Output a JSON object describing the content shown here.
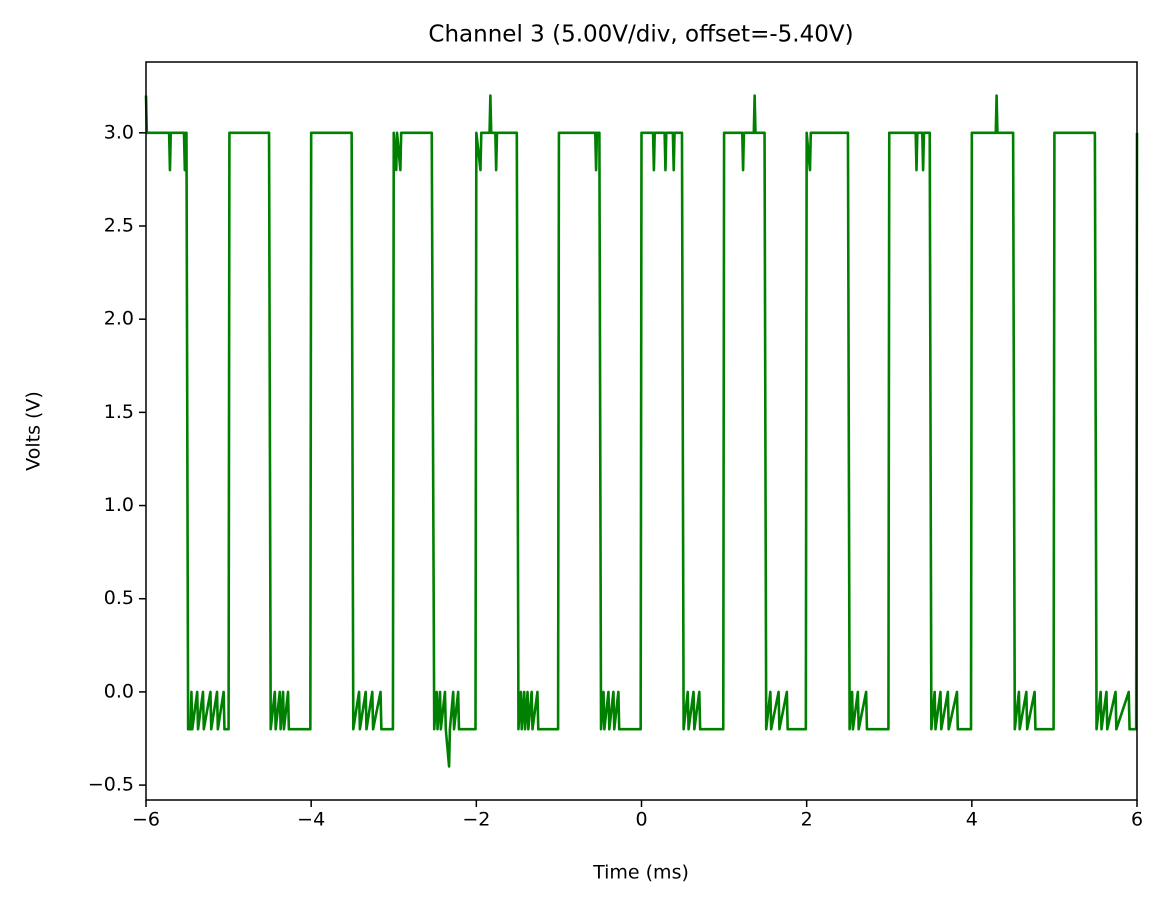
{
  "chart_data": {
    "type": "line",
    "title": "Channel 3 (5.00V/div, offset=-5.40V)",
    "xlabel": "Time (ms)",
    "ylabel": "Volts (V)",
    "xlim": [
      -6,
      6
    ],
    "ylim": [
      -0.58,
      3.38
    ],
    "xticks": [
      {
        "value": -6,
        "label": "−6"
      },
      {
        "value": -4,
        "label": "−4"
      },
      {
        "value": -2,
        "label": "−2"
      },
      0,
      2,
      4,
      6
    ],
    "yticks": [
      {
        "value": -0.5,
        "label": "−0.5"
      },
      {
        "value": 0,
        "label": "0.0"
      },
      {
        "value": 0.5,
        "label": "0.5"
      },
      {
        "value": 1,
        "label": "1.0"
      },
      {
        "value": 1.5,
        "label": "1.5"
      },
      {
        "value": 2,
        "label": "2.0"
      },
      {
        "value": 2.5,
        "label": "2.5"
      },
      {
        "value": 3,
        "label": "3.0"
      }
    ],
    "x": [
      -6,
      -5.99,
      -5.72,
      -5.71,
      -5.7,
      -5.54,
      -5.53,
      -5.52,
      -5.51,
      -5.49,
      -5.46,
      -5.45,
      -5.44,
      -5.38,
      -5.37,
      -5.31,
      -5.3,
      -5.22,
      -5.21,
      -5.14,
      -5.13,
      -5.06,
      -5.05,
      -5.0,
      -4.99,
      -4.51,
      -4.49,
      -4.44,
      -4.43,
      -4.38,
      -4.37,
      -4.34,
      -4.33,
      -4.28,
      -4.27,
      -4.01,
      -4.0,
      -3.51,
      -3.49,
      -3.42,
      -3.41,
      -3.34,
      -3.33,
      -3.26,
      -3.25,
      -3.16,
      -3.15,
      -3.01,
      -3.0,
      -2.97,
      -2.96,
      -2.92,
      -2.91,
      -2.54,
      -2.51,
      -2.48,
      -2.47,
      -2.44,
      -2.43,
      -2.38,
      -2.37,
      -2.33,
      -2.32,
      -2.28,
      -2.27,
      -2.22,
      -2.21,
      -2.01,
      -2.0,
      -1.95,
      -1.94,
      -1.84,
      -1.83,
      -1.82,
      -1.77,
      -1.76,
      -1.75,
      -1.51,
      -1.49,
      -1.46,
      -1.45,
      -1.42,
      -1.41,
      -1.38,
      -1.37,
      -1.33,
      -1.32,
      -1.26,
      -1.25,
      -1.01,
      -1.0,
      -0.56,
      -0.55,
      -0.54,
      -0.51,
      -0.49,
      -0.46,
      -0.45,
      -0.4,
      -0.39,
      -0.34,
      -0.33,
      -0.28,
      -0.27,
      -0.01,
      0.0,
      0.14,
      0.15,
      0.16,
      0.28,
      0.29,
      0.3,
      0.38,
      0.39,
      0.4,
      0.49,
      0.51,
      0.56,
      0.57,
      0.63,
      0.64,
      0.7,
      0.71,
      0.99,
      1.0,
      1.22,
      1.23,
      1.24,
      1.36,
      1.37,
      1.38,
      1.49,
      1.51,
      1.56,
      1.57,
      1.66,
      1.67,
      1.76,
      1.77,
      1.99,
      2.0,
      2.04,
      2.05,
      2.5,
      2.52,
      2.55,
      2.56,
      2.62,
      2.63,
      2.72,
      2.73,
      2.99,
      3.0,
      3.32,
      3.33,
      3.34,
      3.4,
      3.41,
      3.42,
      3.49,
      3.51,
      3.55,
      3.56,
      3.62,
      3.63,
      3.71,
      3.72,
      3.82,
      3.83,
      3.99,
      4.0,
      4.29,
      4.3,
      4.31,
      4.5,
      4.52,
      4.57,
      4.58,
      4.66,
      4.67,
      4.76,
      4.77,
      4.99,
      5.0,
      5.49,
      5.51,
      5.56,
      5.57,
      5.63,
      5.64,
      5.74,
      5.75,
      5.9,
      5.91,
      5.99,
      6.0
    ],
    "series": [
      {
        "color": "#008000",
        "values": [
          3.2,
          3.0,
          3.0,
          2.8,
          3.0,
          3.0,
          2.8,
          3.0,
          3.0,
          -0.2,
          -0.2,
          0,
          -0.2,
          0,
          -0.2,
          0,
          -0.2,
          0,
          -0.2,
          0,
          -0.2,
          0,
          -0.2,
          -0.2,
          3.0,
          3.0,
          -0.2,
          0,
          -0.2,
          0,
          -0.2,
          0,
          -0.2,
          0,
          -0.2,
          -0.2,
          3.0,
          3.0,
          -0.2,
          0,
          -0.2,
          0,
          -0.2,
          0,
          -0.2,
          0,
          -0.2,
          -0.2,
          3.0,
          2.8,
          3.0,
          2.8,
          3.0,
          3.0,
          -0.2,
          0,
          -0.2,
          0,
          -0.2,
          0,
          -0.2,
          -0.4,
          -0.2,
          0,
          -0.2,
          0,
          -0.2,
          -0.2,
          3.0,
          2.8,
          3.0,
          3.0,
          3.2,
          3.0,
          3.0,
          2.8,
          3.0,
          3.0,
          -0.2,
          0,
          -0.2,
          0,
          -0.2,
          0,
          -0.2,
          0,
          -0.2,
          0,
          -0.2,
          -0.2,
          3.0,
          3.0,
          2.8,
          3.0,
          3.0,
          -0.2,
          0,
          -0.2,
          0,
          -0.2,
          0,
          -0.2,
          0,
          -0.2,
          -0.2,
          3.0,
          3.0,
          2.8,
          3.0,
          3.0,
          2.8,
          3.0,
          3.0,
          2.8,
          3.0,
          3.0,
          -0.2,
          0,
          -0.2,
          0,
          -0.2,
          0,
          -0.2,
          -0.2,
          3.0,
          3.0,
          2.8,
          3.0,
          3.0,
          3.2,
          3.0,
          3.0,
          -0.2,
          0,
          -0.2,
          0,
          -0.2,
          0,
          -0.2,
          -0.2,
          3.0,
          2.8,
          3.0,
          3.0,
          -0.2,
          0,
          -0.2,
          0,
          -0.2,
          0,
          -0.2,
          -0.2,
          3.0,
          3.0,
          2.8,
          3.0,
          3.0,
          2.8,
          3.0,
          3.0,
          -0.2,
          0,
          -0.2,
          0,
          -0.2,
          0,
          -0.2,
          0,
          -0.2,
          -0.2,
          3.0,
          3.0,
          3.2,
          3.0,
          3.0,
          -0.2,
          0,
          -0.2,
          0,
          -0.2,
          0,
          -0.2,
          -0.2,
          3.0,
          3.0,
          -0.2,
          0,
          -0.2,
          0,
          -0.2,
          0,
          -0.2,
          0,
          -0.2,
          -0.2,
          3.0
        ]
      }
    ]
  }
}
